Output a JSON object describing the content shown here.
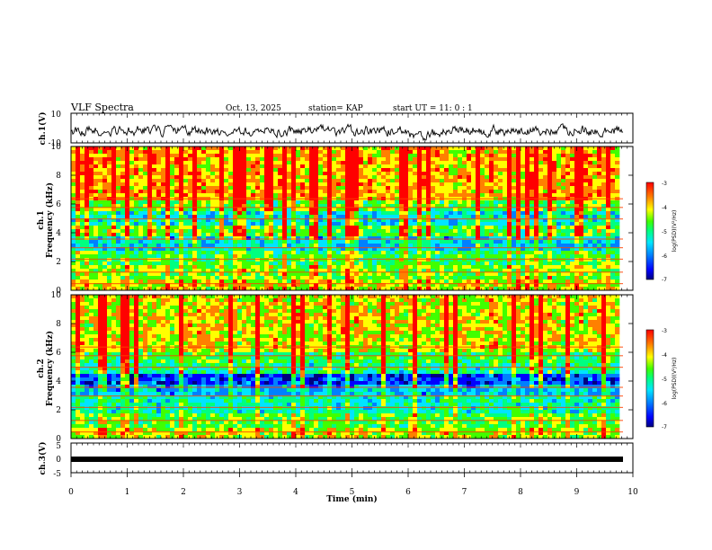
{
  "header": {
    "title": "VLF Spectra",
    "date": "Oct. 13, 2025",
    "station": "station= KAP",
    "start": "start  UT =   11: 0  : 1"
  },
  "chart_data": [
    {
      "type": "line",
      "name": "ch1-waveform",
      "ylabel": "ch.1(V)",
      "ylim": [
        -10,
        10
      ],
      "yticks": [
        "10",
        "-10"
      ],
      "xlim": [
        0,
        9.8
      ],
      "values_note": "noisy waveform around -1 V, amplitude ~ ±4 V"
    },
    {
      "type": "heatmap",
      "name": "ch1-spectrogram",
      "ylabel_line1": "ch.1",
      "ylabel_line2": "Frequency  (kHz)",
      "ylim": [
        0,
        10
      ],
      "yticks": [
        "0",
        "2",
        "4",
        "6",
        "8",
        "10"
      ],
      "xlim": [
        0,
        9.8
      ],
      "colorbar": {
        "label": "log(PSD)(V²/Hz)",
        "ticks": [
          "-3",
          "-4",
          "-5",
          "-6",
          "-7"
        ],
        "range": [
          -7,
          -3
        ]
      }
    },
    {
      "type": "heatmap",
      "name": "ch2-spectrogram",
      "ylabel_line1": "ch.2",
      "ylabel_line2": "Frequency  (kHz)",
      "ylim": [
        0,
        10
      ],
      "yticks": [
        "0",
        "2",
        "4",
        "6",
        "8",
        "10"
      ],
      "xlim": [
        0,
        9.8
      ],
      "colorbar": {
        "label": "log(PSD)(V²/Hz)",
        "ticks": [
          "-3",
          "-4",
          "-5",
          "-6",
          "-7"
        ],
        "range": [
          -7,
          -3
        ]
      }
    },
    {
      "type": "line",
      "name": "ch3-waveform",
      "ylabel": "ch.3(V)",
      "ylim": [
        -5,
        5
      ],
      "yticks": [
        "5",
        "0",
        "-5"
      ],
      "xlim": [
        0,
        9.8
      ],
      "values_note": "near-constant about -1 V"
    }
  ],
  "xaxis": {
    "label": "Time  (min)",
    "range": [
      0,
      10
    ],
    "ticks": [
      "0",
      "1",
      "2",
      "3",
      "4",
      "5",
      "6",
      "7",
      "8",
      "9",
      "10"
    ]
  },
  "colors": {
    "palette": [
      "#000080",
      "#0000ff",
      "#0080ff",
      "#00e5ff",
      "#00ff80",
      "#40ff00",
      "#ffff00",
      "#ff8000",
      "#ff0000"
    ]
  }
}
